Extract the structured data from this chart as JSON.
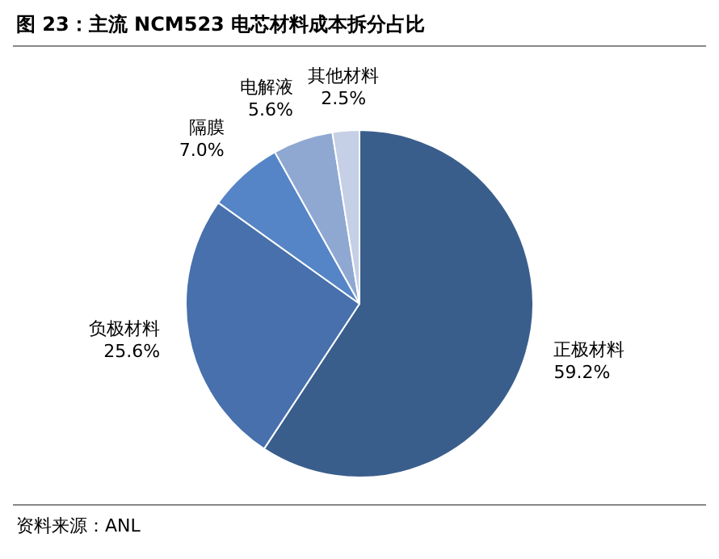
{
  "chart_data": {
    "type": "pie",
    "title": "图 23：主流 NCM523 电芯材料成本拆分占比",
    "categories": [
      "正极材料",
      "负极材料",
      "隔膜",
      "电解液",
      "其他材料"
    ],
    "values": [
      59.2,
      25.6,
      7.0,
      5.6,
      2.5
    ],
    "value_labels": [
      "59.2%",
      "25.6%",
      "7.0%",
      "5.6%",
      "2.5%"
    ],
    "colors": [
      "#3a5e8c",
      "#4770ac",
      "#5585c6",
      "#8fa8d2",
      "#c5cfe5"
    ],
    "legend": false,
    "annotations": [
      "资料来源：ANL"
    ]
  }
}
